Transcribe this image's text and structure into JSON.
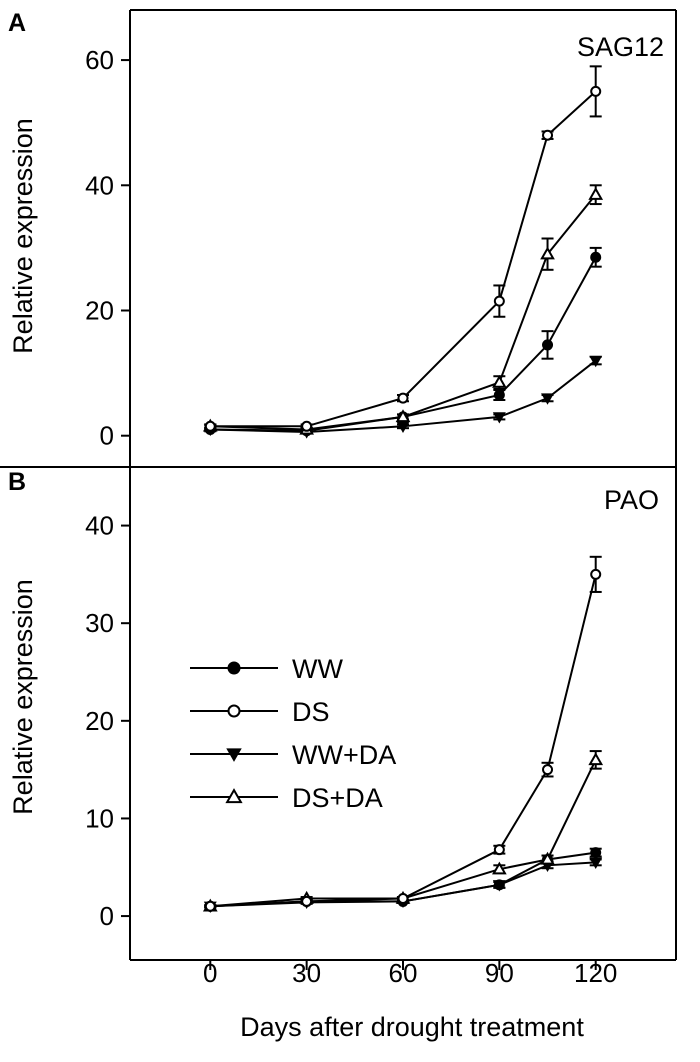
{
  "figure": {
    "xlabel": "Days after drought treatment"
  },
  "legend": {
    "entries": [
      {
        "label": "WW",
        "marker": "filled-circle"
      },
      {
        "label": "DS",
        "marker": "open-circle"
      },
      {
        "label": "WW+DA",
        "marker": "filled-triangle-down"
      },
      {
        "label": "DS+DA",
        "marker": "open-triangle-up"
      }
    ]
  },
  "chart_data": [
    {
      "type": "line",
      "panel_letter": "A",
      "title": "SAG12",
      "ylabel": "Relative expression",
      "xlabel": "Days after drought treatment",
      "x": [
        0,
        30,
        60,
        90,
        105,
        120
      ],
      "xticks": [
        0,
        30,
        60,
        90,
        120
      ],
      "xlim": [
        -25,
        145
      ],
      "ylim": [
        -5,
        68
      ],
      "yticks": [
        0,
        20,
        40,
        60
      ],
      "series": [
        {
          "name": "WW",
          "marker": "filled-circle",
          "values": [
            1.0,
            0.8,
            3.0,
            6.5,
            14.5,
            28.5
          ],
          "errors": [
            0.3,
            0.3,
            0.4,
            0.8,
            2.2,
            1.5
          ]
        },
        {
          "name": "DS",
          "marker": "open-circle",
          "values": [
            1.5,
            1.5,
            6.0,
            21.5,
            48.0,
            55.0
          ],
          "errors": [
            0.3,
            0.3,
            0.5,
            2.5,
            0.6,
            4.0
          ]
        },
        {
          "name": "WW+DA",
          "marker": "filled-triangle-down",
          "values": [
            1.0,
            0.6,
            1.5,
            3.0,
            6.0,
            12.0
          ],
          "errors": [
            0.2,
            0.2,
            0.3,
            0.4,
            0.5,
            0.6
          ]
        },
        {
          "name": "DS+DA",
          "marker": "open-triangle-up",
          "values": [
            1.5,
            1.0,
            3.0,
            8.5,
            29.0,
            38.5
          ],
          "errors": [
            0.3,
            0.3,
            0.4,
            1.0,
            2.5,
            1.5
          ]
        }
      ]
    },
    {
      "type": "line",
      "panel_letter": "B",
      "title": "PAO",
      "ylabel": "Relative expression",
      "xlabel": "Days after drought treatment",
      "x": [
        0,
        30,
        60,
        90,
        105,
        120
      ],
      "xticks": [
        0,
        30,
        60,
        90,
        120
      ],
      "xlim": [
        -25,
        145
      ],
      "ylim": [
        -4.5,
        46
      ],
      "yticks": [
        0,
        10,
        20,
        30,
        40
      ],
      "series": [
        {
          "name": "WW",
          "marker": "filled-circle",
          "values": [
            1.0,
            1.5,
            1.5,
            3.2,
            5.8,
            6.5
          ],
          "errors": [
            0.1,
            0.15,
            0.15,
            0.3,
            0.4,
            0.4
          ]
        },
        {
          "name": "DS",
          "marker": "open-circle",
          "values": [
            1.0,
            1.5,
            1.8,
            6.8,
            15.0,
            35.0
          ],
          "errors": [
            0.1,
            0.15,
            0.15,
            0.4,
            0.7,
            1.8
          ]
        },
        {
          "name": "WW+DA",
          "marker": "filled-triangle-down",
          "values": [
            1.0,
            1.4,
            1.5,
            3.2,
            5.2,
            5.5
          ],
          "errors": [
            0.1,
            0.15,
            0.15,
            0.3,
            0.3,
            0.3
          ]
        },
        {
          "name": "DS+DA",
          "marker": "open-triangle-up",
          "values": [
            1.0,
            1.8,
            1.8,
            4.8,
            5.8,
            16.0
          ],
          "errors": [
            0.1,
            0.15,
            0.15,
            0.4,
            0.4,
            0.9
          ]
        }
      ]
    }
  ]
}
